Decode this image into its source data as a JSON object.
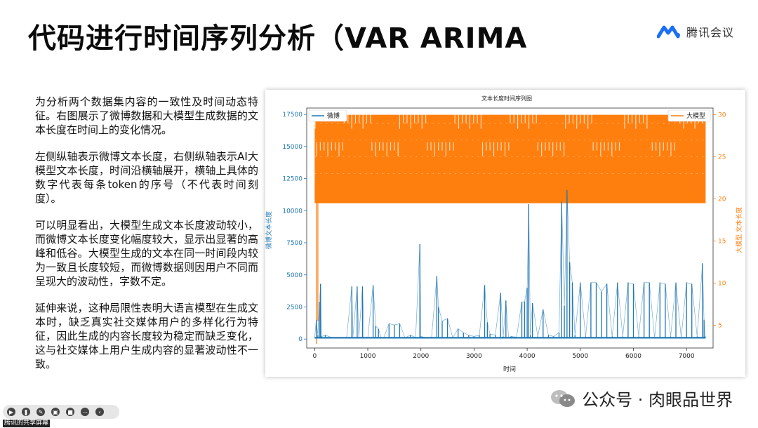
{
  "slide": {
    "title": "代码进行时间序列分析（VAR ARIMA",
    "brand_name": "腾讯会议"
  },
  "body": {
    "paragraphs": [
      "为分析两个数据集内容的一致性及时间动态特征。右图展示了微博数据和大模型生成数据的文本长度在时间上的变化情况。",
      "左侧纵轴表示微博文本长度，右侧纵轴表示AI大模型文本长度，时间沿横轴展开，横轴上具体的数字代表每条token的序号（不代表时间刻度）。",
      "可以明显看出，大模型生成文本长度波动较小，而微博文本长度变化幅度较大，显示出显著的高峰和低谷。大模型生成的文本在同一时间段内较为一致且长度较短，而微博数据则因用户不同而呈现大的波动性，字数不定。",
      "延伸来说，这种局限性表明大语言模型在生成文本时，缺乏真实社交媒体用户的多样化行为特征，因此生成的内容长度较为稳定而缺乏变化，这与社交媒体上用户生成内容的显著波动性不一致。"
    ]
  },
  "chart_data": {
    "type": "line",
    "title": "文本长度时间序列图",
    "xlabel": "时间",
    "ylabel_left": "微博文本长度",
    "ylabel_right": "大模型 文本长度",
    "x_ticks": [
      0,
      1000,
      2000,
      3000,
      4000,
      5000,
      6000,
      7000
    ],
    "xlim": [
      -150,
      7500
    ],
    "left_ticks": [
      0,
      2500,
      5000,
      7500,
      10000,
      12500,
      15000,
      17500
    ],
    "left_ylim": [
      -700,
      18000
    ],
    "right_ticks": [
      5,
      10,
      15,
      20,
      25,
      30
    ],
    "right_ylim": [
      2.3,
      30.8
    ],
    "legend_left": "微博",
    "legend_right": "大模型",
    "colors": {
      "weibo": "#1f77b4",
      "llm": "#ff7f0e"
    },
    "series": [
      {
        "name": "微博",
        "axis": "left",
        "points": [
          [
            0,
            100
          ],
          [
            30,
            1500
          ],
          [
            60,
            300
          ],
          [
            90,
            2900
          ],
          [
            110,
            4300
          ],
          [
            130,
            200
          ],
          [
            200,
            300
          ],
          [
            300,
            150
          ],
          [
            400,
            120
          ],
          [
            500,
            100
          ],
          [
            600,
            90
          ],
          [
            700,
            4100
          ],
          [
            720,
            150
          ],
          [
            800,
            4100
          ],
          [
            830,
            120
          ],
          [
            900,
            4100
          ],
          [
            930,
            130
          ],
          [
            1000,
            80
          ],
          [
            1100,
            4200
          ],
          [
            1150,
            1000
          ],
          [
            1200,
            800
          ],
          [
            1250,
            100
          ],
          [
            1300,
            90
          ],
          [
            1400,
            1200
          ],
          [
            1500,
            1100
          ],
          [
            1600,
            1200
          ],
          [
            1700,
            100
          ],
          [
            1800,
            300
          ],
          [
            1900,
            120
          ],
          [
            1980,
            7400
          ],
          [
            2000,
            200
          ],
          [
            2100,
            100
          ],
          [
            2200,
            150
          ],
          [
            2300,
            4900
          ],
          [
            2330,
            2500
          ],
          [
            2400,
            1400
          ],
          [
            2500,
            1600
          ],
          [
            2600,
            100
          ],
          [
            2700,
            800
          ],
          [
            2800,
            500
          ],
          [
            2900,
            300
          ],
          [
            3000,
            200
          ],
          [
            3100,
            300
          ],
          [
            3200,
            4200
          ],
          [
            3250,
            1300
          ],
          [
            3300,
            400
          ],
          [
            3400,
            300
          ],
          [
            3500,
            3600
          ],
          [
            3550,
            200
          ],
          [
            3600,
            3000
          ],
          [
            3650,
            100
          ],
          [
            3700,
            200
          ],
          [
            3800,
            150
          ],
          [
            3900,
            2900
          ],
          [
            3950,
            2900
          ],
          [
            4000,
            4000
          ],
          [
            4030,
            10500
          ],
          [
            4060,
            300
          ],
          [
            4100,
            2800
          ],
          [
            4200,
            200
          ],
          [
            4300,
            2300
          ],
          [
            4400,
            300
          ],
          [
            4500,
            200
          ],
          [
            4600,
            500
          ],
          [
            4650,
            10700
          ],
          [
            4700,
            2600
          ],
          [
            4750,
            11600
          ],
          [
            4800,
            6000
          ],
          [
            4850,
            4400
          ],
          [
            4900,
            300
          ],
          [
            5000,
            4400
          ],
          [
            5100,
            200
          ],
          [
            5200,
            4400
          ],
          [
            5300,
            4400
          ],
          [
            5400,
            3700
          ],
          [
            5500,
            4300
          ],
          [
            5600,
            200
          ],
          [
            5700,
            4400
          ],
          [
            5800,
            200
          ],
          [
            5900,
            4400
          ],
          [
            6000,
            4300
          ],
          [
            6100,
            200
          ],
          [
            6200,
            4400
          ],
          [
            6300,
            4400
          ],
          [
            6400,
            100
          ],
          [
            6500,
            4400
          ],
          [
            6600,
            4300
          ],
          [
            6700,
            200
          ],
          [
            6800,
            4400
          ],
          [
            6900,
            100
          ],
          [
            7000,
            4400
          ],
          [
            7100,
            4300
          ],
          [
            7200,
            200
          ],
          [
            7300,
            5900
          ],
          [
            7330,
            1500
          ],
          [
            7350,
            200
          ]
        ]
      },
      {
        "name": "大模型",
        "axis": "right",
        "band": {
          "x_start": 0,
          "x_end": 7360,
          "low": 19.5,
          "high": 30,
          "mid_levels": [
            23,
            25,
            27,
            29
          ]
        },
        "spikes": [
          [
            30,
            2.8
          ],
          [
            60,
            5.5
          ]
        ]
      }
    ],
    "legend_position": "upper-left and upper-right",
    "grid": false
  },
  "watermark": {
    "text": "公众号 · 肉眼品世界"
  },
  "meeting_toolbar": {
    "icons": [
      "play-icon",
      "pause-icon",
      "pen-icon",
      "crop-icon",
      "camera-icon",
      "more-icon",
      "collapse-icon"
    ],
    "share_label": "腾讯的共享屏幕"
  }
}
